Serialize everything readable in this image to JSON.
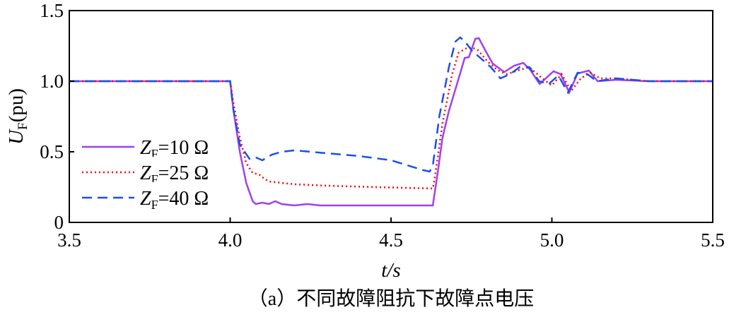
{
  "chart_data": {
    "type": "line",
    "xlabel": "t/s",
    "ylabel": "U_F(pu)",
    "caption": "（a）不同故障阻抗下故障点电压",
    "xlim": [
      3.5,
      5.5
    ],
    "ylim": [
      0,
      1.5
    ],
    "xticks": [
      "3.5",
      "4.0",
      "4.5",
      "5.0",
      "5.5"
    ],
    "yticks": [
      "0",
      "0.5",
      "1.0",
      "1.5"
    ],
    "grid": false,
    "legend_position": "left",
    "series": [
      {
        "name": "ZF=10 Ω",
        "label_var": "Z",
        "label_sub": "F",
        "label_val": "=10 Ω",
        "color": "#a040f0",
        "style": "solid",
        "x": [
          3.5,
          4.0,
          4.01,
          4.03,
          4.05,
          4.07,
          4.08,
          4.1,
          4.12,
          4.14,
          4.16,
          4.2,
          4.24,
          4.28,
          4.35,
          4.5,
          4.63,
          4.645,
          4.66,
          4.68,
          4.713,
          4.729,
          4.742,
          4.762,
          4.773,
          4.795,
          4.816,
          4.852,
          4.883,
          4.911,
          4.933,
          4.962,
          5.005,
          5.027,
          5.054,
          5.08,
          5.115,
          5.142,
          5.2,
          5.3,
          5.4,
          5.5
        ],
        "y": [
          1.0,
          1.0,
          0.8,
          0.5,
          0.28,
          0.15,
          0.13,
          0.14,
          0.13,
          0.15,
          0.13,
          0.12,
          0.13,
          0.12,
          0.12,
          0.12,
          0.12,
          0.35,
          0.6,
          0.79,
          1.04,
          1.165,
          1.17,
          1.3,
          1.305,
          1.21,
          1.125,
          1.065,
          1.11,
          1.13,
          1.08,
          0.98,
          1.07,
          1.05,
          0.92,
          1.055,
          1.075,
          1.0,
          1.01,
          1.0,
          1.0,
          1.0
        ]
      },
      {
        "name": "ZF=25 Ω",
        "label_var": "Z",
        "label_sub": "F",
        "label_val": "=25 Ω",
        "color": "#ff0000",
        "style": "dotted",
        "x": [
          3.5,
          4.0,
          4.01,
          4.03,
          4.05,
          4.07,
          4.09,
          4.1,
          4.12,
          4.2,
          4.3,
          4.45,
          4.63,
          4.635,
          4.66,
          4.69,
          4.71,
          4.73,
          4.75,
          4.77,
          4.8,
          4.83,
          4.86,
          4.9,
          4.93,
          4.97,
          5.0,
          5.03,
          5.06,
          5.09,
          5.12,
          5.15,
          5.2,
          5.3,
          5.4,
          5.5
        ],
        "y": [
          1.0,
          1.0,
          0.85,
          0.6,
          0.42,
          0.35,
          0.34,
          0.32,
          0.29,
          0.27,
          0.26,
          0.25,
          0.24,
          0.3,
          0.7,
          1.05,
          1.2,
          1.23,
          1.24,
          1.22,
          1.14,
          1.08,
          1.05,
          1.08,
          1.1,
          1.02,
          0.97,
          1.05,
          0.93,
          1.02,
          1.06,
          1.02,
          1.02,
          1.0,
          1.0,
          1.0
        ]
      },
      {
        "name": "ZF=40 Ω",
        "label_var": "Z",
        "label_sub": "F",
        "label_val": "=40 Ω",
        "color": "#1a4ff0",
        "style": "dashed",
        "x": [
          3.5,
          4.0,
          4.01,
          4.03,
          4.06,
          4.08,
          4.1,
          4.13,
          4.16,
          4.2,
          4.3,
          4.4,
          4.5,
          4.6,
          4.62,
          4.63,
          4.65,
          4.68,
          4.7,
          4.715,
          4.73,
          4.75,
          4.78,
          4.81,
          4.84,
          4.87,
          4.9,
          4.93,
          4.96,
          4.99,
          5.02,
          5.05,
          5.08,
          5.11,
          5.14,
          5.2,
          5.3,
          5.4,
          5.5
        ],
        "y": [
          1.0,
          1.0,
          0.8,
          0.55,
          0.45,
          0.46,
          0.44,
          0.48,
          0.5,
          0.51,
          0.49,
          0.47,
          0.44,
          0.37,
          0.36,
          0.4,
          0.75,
          1.1,
          1.28,
          1.31,
          1.28,
          1.22,
          1.16,
          1.1,
          1.02,
          1.05,
          1.1,
          1.1,
          1.0,
          0.98,
          1.04,
          0.92,
          1.06,
          1.05,
          1.0,
          1.02,
          1.0,
          1.0,
          1.0
        ]
      }
    ]
  }
}
